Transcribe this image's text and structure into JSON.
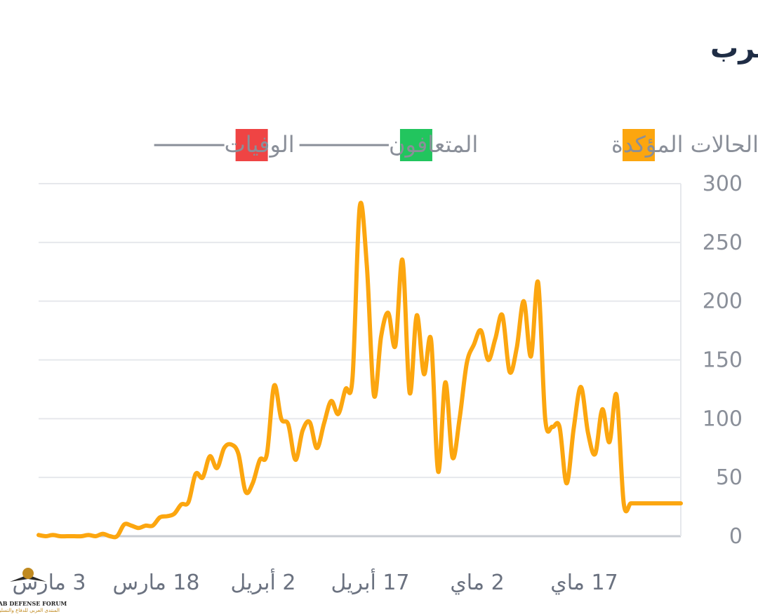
{
  "chart_data": {
    "type": "line",
    "title": "مبيان تطور فيروس كورونا في المغرب",
    "legend": [
      {
        "name": "الحالات المؤكدة",
        "color": "#fca60f",
        "active": true
      },
      {
        "name": "المتعافون",
        "color": "#22c55e",
        "active": false
      },
      {
        "name": "الوفيات",
        "color": "#ef4444",
        "active": false
      }
    ],
    "x_ticks": [
      {
        "day": 0,
        "label": "3 مارس"
      },
      {
        "day": 15,
        "label": "18 مارس"
      },
      {
        "day": 30,
        "label": "2 أبريل"
      },
      {
        "day": 45,
        "label": "17 أبريل"
      },
      {
        "day": 60,
        "label": "2 ماي"
      },
      {
        "day": 75,
        "label": "17 ماي"
      }
    ],
    "y_ticks": [
      0,
      50,
      100,
      150,
      200,
      250,
      300
    ],
    "ylim": [
      0,
      300
    ],
    "xlim": [
      0,
      90
    ],
    "series": [
      {
        "name": "الحالات المؤكدة",
        "color": "#fca60f",
        "x": [
          0,
          1,
          2,
          3,
          4,
          5,
          6,
          7,
          8,
          9,
          10,
          11,
          12,
          13,
          14,
          15,
          16,
          17,
          18,
          19,
          20,
          21,
          22,
          23,
          24,
          25,
          26,
          27,
          28,
          29,
          30,
          31,
          32,
          33,
          34,
          35,
          36,
          37,
          38,
          39,
          40,
          41,
          42,
          43,
          44,
          45,
          46,
          47,
          48,
          49,
          50,
          51,
          52,
          53,
          54,
          55,
          56,
          57,
          58,
          59,
          60,
          61,
          62,
          63,
          64,
          65,
          66,
          67,
          68,
          69,
          70,
          71,
          72,
          73,
          74,
          75,
          76,
          77,
          78,
          79,
          80,
          81,
          82,
          83,
          84,
          85,
          86,
          87,
          88,
          89,
          90
        ],
        "y": [
          1,
          0,
          1,
          0,
          0,
          0,
          0,
          1,
          0,
          2,
          0,
          0,
          10,
          9,
          7,
          9,
          9,
          16,
          17,
          19,
          27,
          29,
          53,
          50,
          68,
          58,
          75,
          78,
          70,
          38,
          45,
          65,
          70,
          128,
          100,
          95,
          65,
          90,
          97,
          75,
          96,
          115,
          104,
          125,
          135,
          280,
          230,
          120,
          170,
          190,
          162,
          235,
          122,
          188,
          138,
          167,
          55,
          131,
          67,
          100,
          147,
          163,
          175,
          150,
          168,
          188,
          140,
          160,
          200,
          153,
          216,
          100,
          93,
          93,
          45,
          92,
          127,
          88,
          70,
          108,
          80,
          120,
          28,
          28,
          28,
          28,
          28,
          28,
          28,
          28,
          28
        ]
      }
    ],
    "watermark": {
      "title": "ARAB DEFENSE FORUM",
      "subtitle": "المنتدى العربي للدفاع والتسليح"
    }
  }
}
